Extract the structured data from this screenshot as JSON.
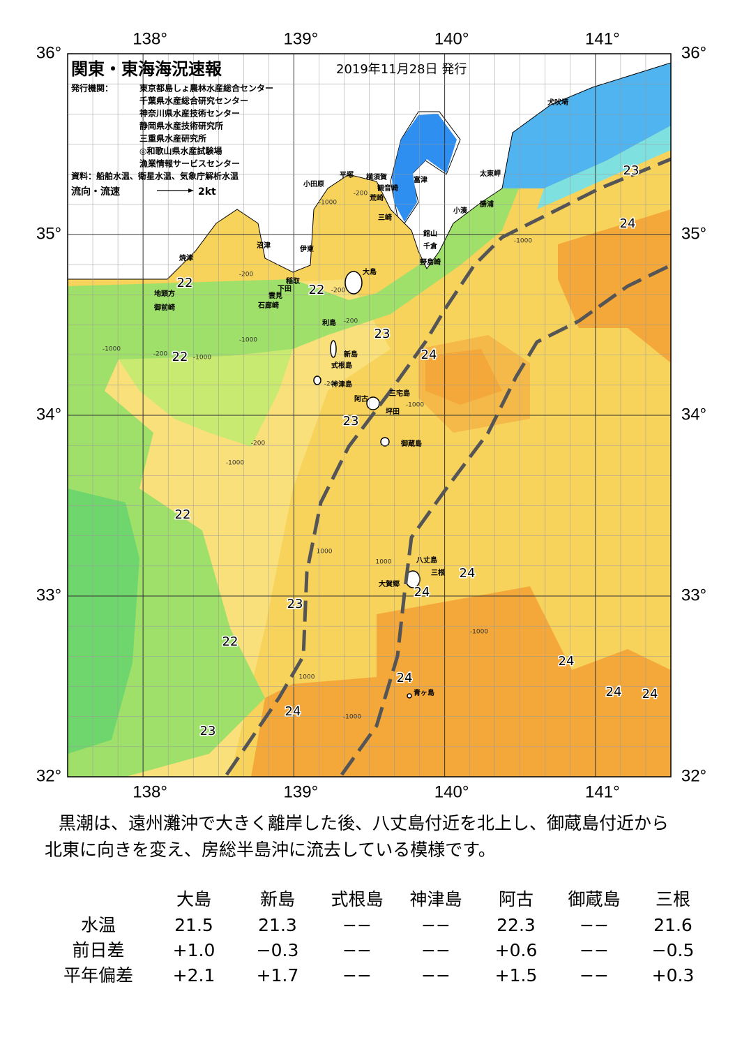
{
  "header": {
    "title": "関東・東海海況速報",
    "date": "2019年11月28日 発行"
  },
  "publishers": {
    "label": "発行機関：",
    "names": [
      "東京都島しょ農林水産総合センター",
      "千葉県水産総合研究センター",
      "神奈川県水産技術センター",
      "静岡県水産技術研究所",
      "三重県水産研究所",
      "◎和歌山県水産試験場",
      "漁業情報サービスセンター"
    ]
  },
  "source": "資料：船舶水温、衛星水温、気象庁解析水温",
  "legend": {
    "label": "流向・流速",
    "unit": "2kt"
  },
  "map": {
    "longitude_labels": [
      "138°",
      "139°",
      "140°",
      "141°"
    ],
    "latitude_labels": [
      "36°",
      "35°",
      "34°",
      "33°",
      "32°"
    ],
    "place_names": [
      "犬吠埼",
      "太東岬",
      "勝浦",
      "小湊",
      "館山",
      "千倉",
      "野島崎",
      "富津",
      "観音崎",
      "荒崎",
      "三崎",
      "横須賀",
      "平塚",
      "小田原",
      "沼津",
      "伊東",
      "焼津",
      "大島",
      "稲取",
      "下田",
      "雲見",
      "石廊崎",
      "地頭方",
      "御前崎",
      "利島",
      "新島",
      "式根島",
      "神津島",
      "三宅島",
      "阿古",
      "坪田",
      "御蔵島",
      "八丈島",
      "三根",
      "大賀郷",
      "青ヶ島"
    ],
    "temperature_labels": [
      "22",
      "22",
      "23",
      "24",
      "22",
      "23",
      "22",
      "24",
      "24",
      "23",
      "22",
      "24",
      "24",
      "24",
      "24",
      "24",
      "23",
      "23",
      "24"
    ],
    "depth_labels": [
      "-200",
      "-1000",
      "-200",
      "-200",
      "-200",
      "-1000",
      "-1000",
      "-200",
      "-1000",
      "-200",
      "-1000",
      "-200",
      "-1000",
      "-1000",
      "1000",
      "1000",
      "1000",
      "-1000",
      "-1000"
    ]
  },
  "description": [
    "黒潮は、遠州灘沖で大きく離岸した後、八丈島付近を北上し、御蔵島付近から",
    "北東に向きを変え、房総半島沖に流去している模様です。"
  ],
  "table": {
    "columns": [
      "大島",
      "新島",
      "式根島",
      "神津島",
      "阿古",
      "御蔵島",
      "三根"
    ],
    "rows": [
      {
        "label": "水温",
        "values": [
          "21.5",
          "21.3",
          "−−",
          "−−",
          "22.3",
          "−−",
          "21.6"
        ]
      },
      {
        "label": "前日差",
        "values": [
          "+1.0",
          "−0.3",
          "−−",
          "−−",
          "+0.6",
          "−−",
          "−0.5"
        ]
      },
      {
        "label": "平年偏差",
        "values": [
          "+2.1",
          "+1.7",
          "−−",
          "−−",
          "+1.5",
          "−−",
          "+0.3"
        ]
      }
    ]
  }
}
